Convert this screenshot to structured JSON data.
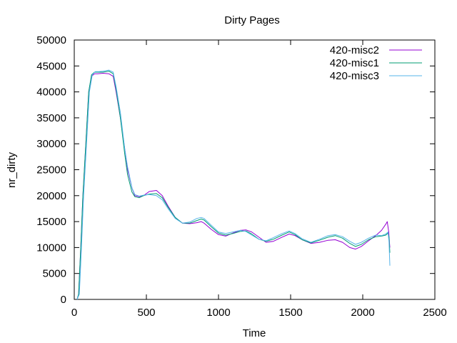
{
  "chart_data": {
    "type": "line",
    "title": "Dirty Pages",
    "xlabel": "Time",
    "ylabel": "nr_dirty",
    "xlim": [
      0,
      2500
    ],
    "ylim": [
      0,
      50000
    ],
    "xticks": [
      0,
      500,
      1000,
      1500,
      2000,
      2500
    ],
    "yticks": [
      0,
      5000,
      10000,
      15000,
      20000,
      25000,
      30000,
      35000,
      40000,
      45000,
      50000
    ],
    "grid": false,
    "legend_position": "top-right",
    "series": [
      {
        "name": "420-misc2",
        "color": "#9400d3",
        "points": [
          [
            20,
            0
          ],
          [
            30,
            1000
          ],
          [
            45,
            10000
          ],
          [
            60,
            20000
          ],
          [
            80,
            30000
          ],
          [
            100,
            40000
          ],
          [
            120,
            43000
          ],
          [
            140,
            43500
          ],
          [
            160,
            43500
          ],
          [
            200,
            43600
          ],
          [
            240,
            43500
          ],
          [
            270,
            43000
          ],
          [
            290,
            40000
          ],
          [
            320,
            35000
          ],
          [
            350,
            29000
          ],
          [
            370,
            25000
          ],
          [
            400,
            21500
          ],
          [
            420,
            20000
          ],
          [
            450,
            19800
          ],
          [
            480,
            20000
          ],
          [
            520,
            20800
          ],
          [
            570,
            21000
          ],
          [
            610,
            20000
          ],
          [
            650,
            18000
          ],
          [
            700,
            15800
          ],
          [
            750,
            14700
          ],
          [
            800,
            14600
          ],
          [
            850,
            14800
          ],
          [
            880,
            15000
          ],
          [
            900,
            14700
          ],
          [
            950,
            13500
          ],
          [
            1000,
            12500
          ],
          [
            1050,
            12200
          ],
          [
            1100,
            12800
          ],
          [
            1150,
            13300
          ],
          [
            1190,
            13400
          ],
          [
            1230,
            13000
          ],
          [
            1280,
            12000
          ],
          [
            1330,
            11000
          ],
          [
            1380,
            11200
          ],
          [
            1440,
            12000
          ],
          [
            1490,
            12600
          ],
          [
            1530,
            12300
          ],
          [
            1580,
            11500
          ],
          [
            1640,
            10800
          ],
          [
            1700,
            11000
          ],
          [
            1760,
            11400
          ],
          [
            1810,
            11500
          ],
          [
            1860,
            11000
          ],
          [
            1910,
            10000
          ],
          [
            1950,
            9700
          ],
          [
            1990,
            10200
          ],
          [
            2040,
            11300
          ],
          [
            2090,
            12300
          ],
          [
            2130,
            13300
          ],
          [
            2160,
            14500
          ],
          [
            2170,
            15000
          ],
          [
            2180,
            13000
          ],
          [
            2185,
            11000
          ],
          [
            2188,
            10000
          ]
        ]
      },
      {
        "name": "420-misc1",
        "color": "#009e73",
        "points": [
          [
            20,
            0
          ],
          [
            30,
            1000
          ],
          [
            45,
            10000
          ],
          [
            60,
            20000
          ],
          [
            80,
            30000
          ],
          [
            100,
            40000
          ],
          [
            120,
            43300
          ],
          [
            140,
            43800
          ],
          [
            160,
            43800
          ],
          [
            200,
            43800
          ],
          [
            240,
            44000
          ],
          [
            270,
            43500
          ],
          [
            290,
            40500
          ],
          [
            320,
            35000
          ],
          [
            350,
            28000
          ],
          [
            370,
            24000
          ],
          [
            400,
            20700
          ],
          [
            420,
            19800
          ],
          [
            450,
            19600
          ],
          [
            480,
            20000
          ],
          [
            520,
            20300
          ],
          [
            570,
            20400
          ],
          [
            610,
            19600
          ],
          [
            650,
            17800
          ],
          [
            700,
            15800
          ],
          [
            750,
            14700
          ],
          [
            800,
            14700
          ],
          [
            850,
            15200
          ],
          [
            880,
            15500
          ],
          [
            900,
            15300
          ],
          [
            950,
            14000
          ],
          [
            1000,
            12800
          ],
          [
            1050,
            12400
          ],
          [
            1100,
            12700
          ],
          [
            1150,
            13100
          ],
          [
            1190,
            13200
          ],
          [
            1230,
            12600
          ],
          [
            1280,
            11600
          ],
          [
            1330,
            11200
          ],
          [
            1380,
            11600
          ],
          [
            1440,
            12400
          ],
          [
            1490,
            13000
          ],
          [
            1530,
            12500
          ],
          [
            1580,
            11500
          ],
          [
            1640,
            10900
          ],
          [
            1700,
            11400
          ],
          [
            1760,
            12000
          ],
          [
            1810,
            12300
          ],
          [
            1860,
            11800
          ],
          [
            1910,
            10800
          ],
          [
            1950,
            10200
          ],
          [
            1990,
            10600
          ],
          [
            2040,
            11500
          ],
          [
            2090,
            12100
          ],
          [
            2130,
            12200
          ],
          [
            2160,
            12400
          ],
          [
            2175,
            12800
          ],
          [
            2182,
            12000
          ],
          [
            2188,
            9000
          ]
        ]
      },
      {
        "name": "420-misc3",
        "color": "#56b4e9",
        "points": [
          [
            20,
            0
          ],
          [
            35,
            1000
          ],
          [
            50,
            10000
          ],
          [
            65,
            20000
          ],
          [
            85,
            30000
          ],
          [
            105,
            40000
          ],
          [
            125,
            43300
          ],
          [
            145,
            43900
          ],
          [
            170,
            43900
          ],
          [
            200,
            44000
          ],
          [
            240,
            44200
          ],
          [
            270,
            43800
          ],
          [
            290,
            41000
          ],
          [
            320,
            36000
          ],
          [
            350,
            29000
          ],
          [
            370,
            25500
          ],
          [
            400,
            21500
          ],
          [
            420,
            20200
          ],
          [
            450,
            19900
          ],
          [
            480,
            20100
          ],
          [
            520,
            20200
          ],
          [
            570,
            20000
          ],
          [
            610,
            19200
          ],
          [
            650,
            17500
          ],
          [
            700,
            15600
          ],
          [
            750,
            14700
          ],
          [
            800,
            14900
          ],
          [
            850,
            15600
          ],
          [
            880,
            15800
          ],
          [
            900,
            15600
          ],
          [
            950,
            14300
          ],
          [
            1000,
            13000
          ],
          [
            1050,
            12700
          ],
          [
            1100,
            13000
          ],
          [
            1150,
            13300
          ],
          [
            1190,
            13100
          ],
          [
            1230,
            12400
          ],
          [
            1280,
            11600
          ],
          [
            1330,
            11300
          ],
          [
            1380,
            11900
          ],
          [
            1440,
            12700
          ],
          [
            1490,
            13200
          ],
          [
            1530,
            12700
          ],
          [
            1580,
            11700
          ],
          [
            1640,
            11000
          ],
          [
            1700,
            11600
          ],
          [
            1760,
            12300
          ],
          [
            1810,
            12500
          ],
          [
            1860,
            12100
          ],
          [
            1910,
            11200
          ],
          [
            1950,
            10600
          ],
          [
            1990,
            11000
          ],
          [
            2040,
            11800
          ],
          [
            2090,
            12400
          ],
          [
            2130,
            12300
          ],
          [
            2160,
            12600
          ],
          [
            2175,
            13000
          ],
          [
            2182,
            11000
          ],
          [
            2188,
            6500
          ]
        ]
      }
    ]
  }
}
